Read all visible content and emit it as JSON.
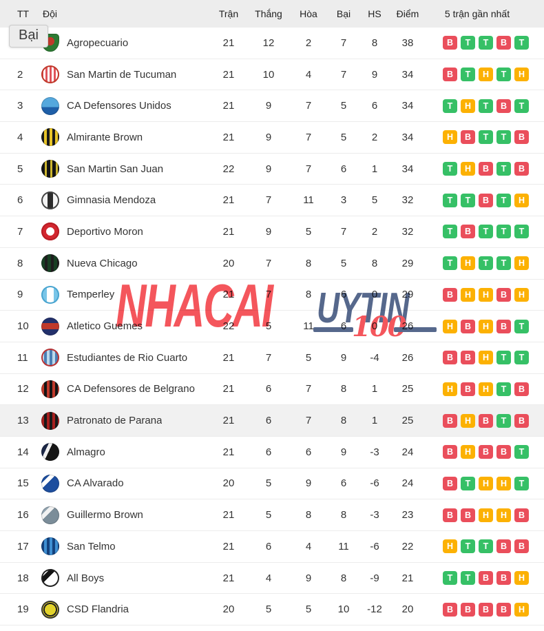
{
  "colors": {
    "win": "#36c066",
    "draw": "#fcb103",
    "loss": "#ea4e5b",
    "header_bg": "#ededed",
    "row_highlight": "#f1f1f1",
    "watermark_red": "#f4565c",
    "watermark_slate": "#56688c"
  },
  "tooltip": {
    "text": "Bại"
  },
  "watermark": {
    "part1": "NHACAI",
    "part2": "UYTIN",
    "part3": "100"
  },
  "table": {
    "headers": {
      "tt": "TT",
      "team": "Đội",
      "played": "Trận",
      "won": "Thắng",
      "drawn": "Hòa",
      "lost": "Bại",
      "gd": "HS",
      "points": "Điểm",
      "form": "5 trận gần nhất"
    },
    "rows": [
      {
        "pos": "1",
        "team": "Agropecuario",
        "played": "21",
        "won": "12",
        "drawn": "2",
        "lost": "7",
        "gd": "8",
        "points": "38",
        "form": [
          "B",
          "T",
          "T",
          "B",
          "T"
        ],
        "highlight": false,
        "logo": "radial-gradient(circle at 50% 42%, #c0392b 0 6px, #2d7a33 6px)",
        "shape": "shield",
        "ring": ""
      },
      {
        "pos": "2",
        "team": "San Martin de Tucuman",
        "played": "21",
        "won": "10",
        "drawn": "4",
        "lost": "7",
        "gd": "9",
        "points": "34",
        "form": [
          "B",
          "T",
          "H",
          "T",
          "H"
        ],
        "highlight": false,
        "logo": "repeating-linear-gradient(90deg, #e0535a 0 3px, #ffffff 3px 6px)",
        "shape": "",
        "ring": "#c0392b"
      },
      {
        "pos": "3",
        "team": "CA Defensores Unidos",
        "played": "21",
        "won": "9",
        "drawn": "7",
        "lost": "5",
        "gd": "6",
        "points": "34",
        "form": [
          "T",
          "H",
          "T",
          "B",
          "T"
        ],
        "highlight": false,
        "logo": "linear-gradient(180deg, #55a8dd 0 55%, #1e5fa8 55%)",
        "shape": "",
        "ring": ""
      },
      {
        "pos": "4",
        "team": "Almirante Brown",
        "played": "21",
        "won": "9",
        "drawn": "7",
        "lost": "5",
        "gd": "2",
        "points": "34",
        "form": [
          "H",
          "B",
          "T",
          "T",
          "B"
        ],
        "highlight": false,
        "logo": "repeating-linear-gradient(90deg, #1a1a1a 0 4px, #e7c428 4px 8px)",
        "shape": "",
        "ring": ""
      },
      {
        "pos": "5",
        "team": "San Martin San Juan",
        "played": "22",
        "won": "9",
        "drawn": "7",
        "lost": "6",
        "gd": "1",
        "points": "34",
        "form": [
          "T",
          "H",
          "B",
          "T",
          "B"
        ],
        "highlight": false,
        "logo": "repeating-linear-gradient(90deg, #141414 0 5px, #cdb62f 5px 8px)",
        "shape": "",
        "ring": ""
      },
      {
        "pos": "6",
        "team": "Gimnasia Mendoza",
        "played": "21",
        "won": "7",
        "drawn": "11",
        "lost": "3",
        "gd": "5",
        "points": "32",
        "form": [
          "T",
          "T",
          "B",
          "T",
          "H"
        ],
        "highlight": false,
        "logo": "linear-gradient(90deg, #f4f4f4 0 9px, #2b2b2b 9px 17px, #f4f4f4 17px)",
        "shape": "",
        "ring": "#444444"
      },
      {
        "pos": "7",
        "team": "Deportivo Moron",
        "played": "21",
        "won": "9",
        "drawn": "5",
        "lost": "7",
        "gd": "2",
        "points": "32",
        "form": [
          "T",
          "B",
          "T",
          "T",
          "T"
        ],
        "highlight": false,
        "logo": "radial-gradient(circle, #ffffff 0 6px, #d2262f 6px)",
        "shape": "",
        "ring": "#b71c24"
      },
      {
        "pos": "8",
        "team": "Nueva Chicago",
        "played": "20",
        "won": "7",
        "drawn": "8",
        "lost": "5",
        "gd": "8",
        "points": "29",
        "form": [
          "T",
          "H",
          "T",
          "T",
          "H"
        ],
        "highlight": false,
        "logo": "repeating-linear-gradient(90deg, #173f23 0 5px, #1d1d1d 5px 9px)",
        "shape": "",
        "ring": ""
      },
      {
        "pos": "9",
        "team": "Temperley",
        "played": "21",
        "won": "7",
        "drawn": "8",
        "lost": "6",
        "gd": "0",
        "points": "29",
        "form": [
          "B",
          "H",
          "H",
          "B",
          "H"
        ],
        "highlight": false,
        "logo": "linear-gradient(90deg, #79c5e8 0 8px, #ffffff 8px 18px, #79c5e8 18px)",
        "shape": "",
        "ring": "#4aa5d0"
      },
      {
        "pos": "10",
        "team": "Atletico Guemes",
        "played": "22",
        "won": "5",
        "drawn": "11",
        "lost": "6",
        "gd": "0",
        "points": "26",
        "form": [
          "H",
          "B",
          "H",
          "B",
          "T"
        ],
        "highlight": false,
        "logo": "linear-gradient(180deg, #23306b 0 8px, #c0392b 8px 17px, #23306b 17px)",
        "shape": "",
        "ring": ""
      },
      {
        "pos": "11",
        "team": "Estudiantes de Rio Cuarto",
        "played": "21",
        "won": "7",
        "drawn": "5",
        "lost": "9",
        "gd": "-4",
        "points": "26",
        "form": [
          "B",
          "B",
          "H",
          "T",
          "T"
        ],
        "highlight": false,
        "logo": "repeating-linear-gradient(90deg, #bcd9ec 0 4px, #4a7fb5 4px 8px)",
        "shape": "",
        "ring": "#bb3333"
      },
      {
        "pos": "12",
        "team": "CA Defensores de Belgrano",
        "played": "21",
        "won": "6",
        "drawn": "7",
        "lost": "8",
        "gd": "1",
        "points": "25",
        "form": [
          "H",
          "B",
          "H",
          "T",
          "B"
        ],
        "highlight": false,
        "logo": "repeating-linear-gradient(90deg, #c0392b 0 4px, #141414 4px 8px)",
        "shape": "",
        "ring": ""
      },
      {
        "pos": "13",
        "team": "Patronato de Parana",
        "played": "21",
        "won": "6",
        "drawn": "7",
        "lost": "8",
        "gd": "1",
        "points": "25",
        "form": [
          "B",
          "H",
          "B",
          "T",
          "B"
        ],
        "highlight": true,
        "logo": "repeating-linear-gradient(90deg, #a8201f 0 4px, #191919 4px 8px)",
        "shape": "",
        "ring": ""
      },
      {
        "pos": "14",
        "team": "Almagro",
        "played": "21",
        "won": "6",
        "drawn": "6",
        "lost": "9",
        "gd": "-3",
        "points": "24",
        "form": [
          "B",
          "H",
          "B",
          "B",
          "T"
        ],
        "highlight": false,
        "logo": "linear-gradient(115deg, #1c2746 0 10px, #f0f0f0 10px 15px, #161616 15px)",
        "shape": "",
        "ring": ""
      },
      {
        "pos": "15",
        "team": "CA Alvarado",
        "played": "20",
        "won": "5",
        "drawn": "9",
        "lost": "6",
        "gd": "-6",
        "points": "24",
        "form": [
          "B",
          "T",
          "H",
          "H",
          "T"
        ],
        "highlight": false,
        "logo": "linear-gradient(135deg, #1d4e9e 0 9px, #ffffff 9px 15px, #1d4e9e 15px)",
        "shape": "",
        "ring": ""
      },
      {
        "pos": "16",
        "team": "Guillermo Brown",
        "played": "21",
        "won": "5",
        "drawn": "8",
        "lost": "8",
        "gd": "-3",
        "points": "23",
        "form": [
          "B",
          "B",
          "H",
          "H",
          "B"
        ],
        "highlight": false,
        "logo": "linear-gradient(135deg, #93a5b1 0 9px, #f2f2f2 9px 15px, #7b8d99 15px)",
        "shape": "",
        "ring": ""
      },
      {
        "pos": "17",
        "team": "San Telmo",
        "played": "21",
        "won": "6",
        "drawn": "4",
        "lost": "11",
        "gd": "-6",
        "points": "22",
        "form": [
          "H",
          "T",
          "T",
          "B",
          "B"
        ],
        "highlight": false,
        "logo": "repeating-linear-gradient(90deg, #14427e 0 4px, #3f8fd2 4px 8px)",
        "shape": "",
        "ring": ""
      },
      {
        "pos": "18",
        "team": "All Boys",
        "played": "21",
        "won": "4",
        "drawn": "9",
        "lost": "8",
        "gd": "-9",
        "points": "21",
        "form": [
          "T",
          "T",
          "B",
          "B",
          "H"
        ],
        "highlight": false,
        "logo": "linear-gradient(135deg, #ffffff 0 9px, #141414 9px 16px, #ffffff 16px)",
        "shape": "",
        "ring": "#222222"
      },
      {
        "pos": "19",
        "team": "CSD Flandria",
        "played": "20",
        "won": "5",
        "drawn": "5",
        "lost": "10",
        "gd": "-12",
        "points": "20",
        "form": [
          "B",
          "B",
          "B",
          "B",
          "H"
        ],
        "highlight": false,
        "logo": "radial-gradient(circle, #e3d32b 0 8px, #202020 8px 10px, #e3d32b 10px)",
        "shape": "",
        "ring": "#333333"
      }
    ]
  }
}
